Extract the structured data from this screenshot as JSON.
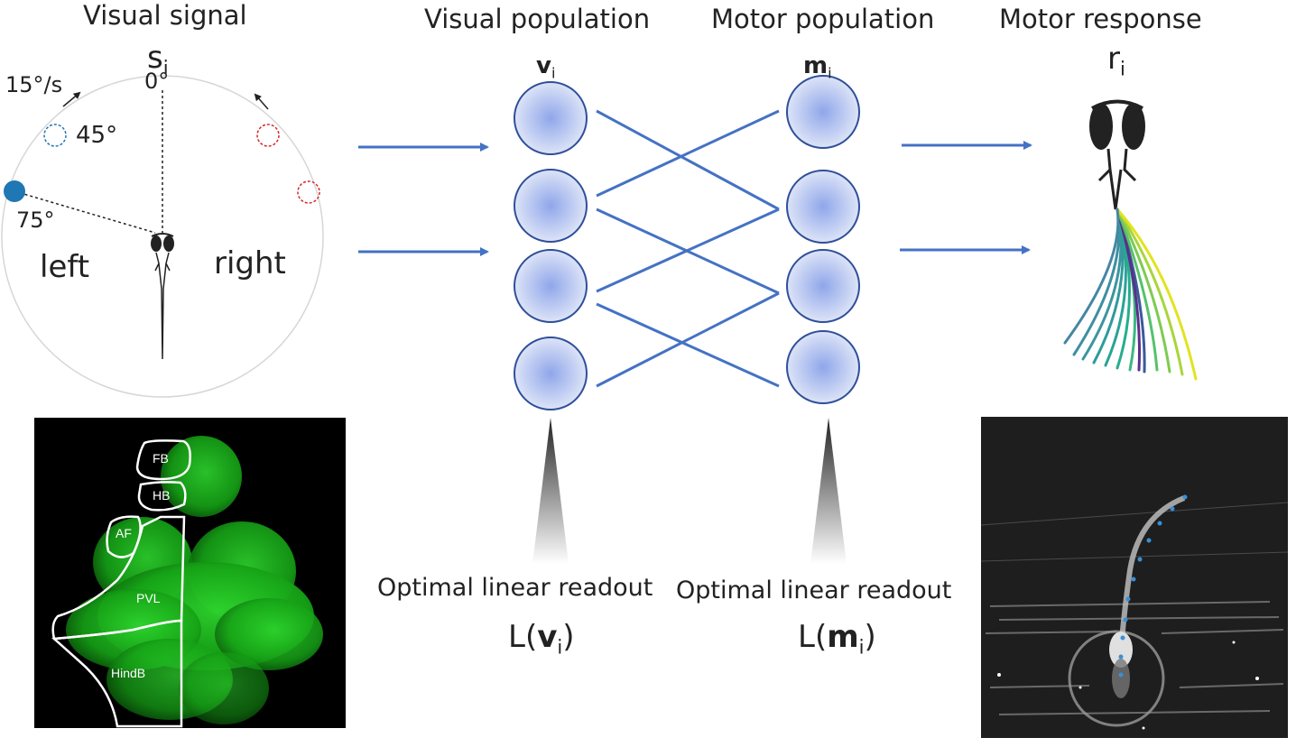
{
  "headers": {
    "visual_signal": "Visual signal",
    "visual_population": "Visual population",
    "motor_population": "Motor population",
    "motor_response": "Motor response"
  },
  "stimulus": {
    "symbol": "s",
    "symbol_sub": "i",
    "zero_angle": "0°",
    "speed": "15°/s",
    "angle_45": "45°",
    "angle_75": "75°",
    "left": "left",
    "right": "right"
  },
  "visual_pop": {
    "symbol": "v",
    "sub": "i"
  },
  "motor_pop": {
    "symbol": "m",
    "sub": "i"
  },
  "response": {
    "symbol": "r",
    "sub": "i"
  },
  "readout": {
    "label_visual": "Optimal linear readout",
    "label_motor": "Optimal linear readout",
    "L": "L(",
    "close": ")"
  },
  "brain_regions": [
    "FB",
    "HB",
    "AF",
    "PVL",
    "HindB"
  ],
  "colors": {
    "arrow_blue": "#4472c4",
    "stim_blue": "#1f77b4",
    "stim_red": "#d62728",
    "brain_green": "#22c322",
    "neuron_fill": "#c9d4f2",
    "neuron_edge": "#2f4f9a"
  }
}
